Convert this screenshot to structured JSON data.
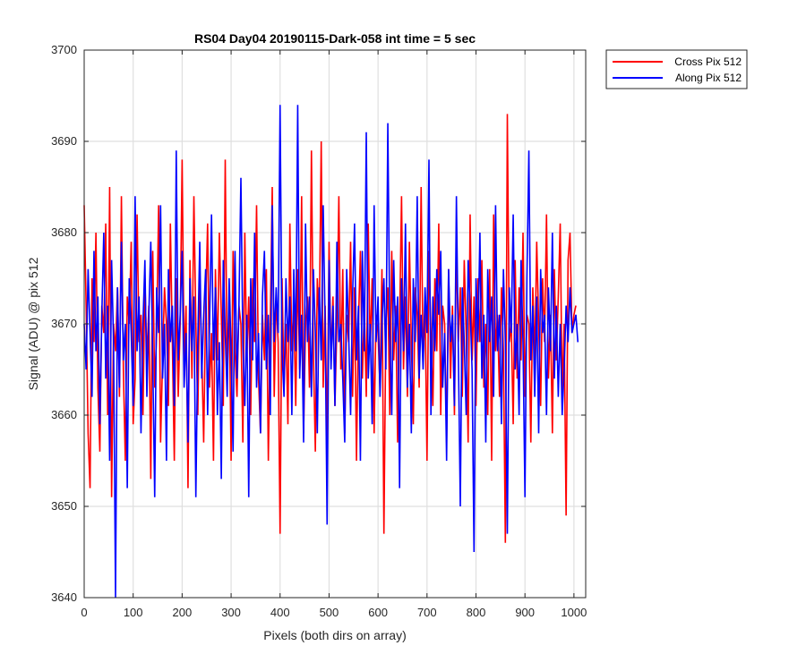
{
  "chart_data": {
    "type": "line",
    "title": "RS04 Day04 20190115-Dark-058 int time = 5 sec",
    "xlabel": "Pixels (both dirs on array)",
    "ylabel": "Signal (ADU) @ pix 512",
    "xlim": [
      0,
      1024
    ],
    "ylim": [
      3640,
      3700
    ],
    "xticks": [
      0,
      100,
      200,
      300,
      400,
      500,
      600,
      700,
      800,
      900,
      1000
    ],
    "yticks": [
      3640,
      3650,
      3660,
      3670,
      3680,
      3690,
      3700
    ],
    "grid": true,
    "legend_position": "outside-top-right",
    "series": [
      {
        "name": "Cross Pix 512",
        "color": "#ff0000",
        "x_start": 0,
        "x_step": 4,
        "values": [
          3683,
          3672,
          3658,
          3652,
          3675,
          3668,
          3680,
          3663,
          3656,
          3672,
          3669,
          3681,
          3660,
          3685,
          3651,
          3670,
          3667,
          3674,
          3662,
          3684,
          3665,
          3655,
          3673,
          3670,
          3679,
          3659,
          3664,
          3682,
          3668,
          3671,
          3660,
          3675,
          3666,
          3672,
          3653,
          3678,
          3663,
          3669,
          3683,
          3657,
          3666,
          3674,
          3670,
          3661,
          3681,
          3668,
          3655,
          3675,
          3662,
          3670,
          3688,
          3666,
          3672,
          3652,
          3677,
          3664,
          3684,
          3670,
          3660,
          3675,
          3667,
          3657,
          3672,
          3681,
          3663,
          3669,
          3655,
          3676,
          3666,
          3680,
          3671,
          3661,
          3688,
          3664,
          3673,
          3655,
          3678,
          3667,
          3662,
          3672,
          3670,
          3657,
          3680,
          3666,
          3673,
          3660,
          3675,
          3668,
          3683,
          3664,
          3658,
          3671,
          3666,
          3676,
          3655,
          3670,
          3685,
          3662,
          3673,
          3668,
          3647,
          3675,
          3663,
          3670,
          3659,
          3681,
          3667,
          3672,
          3661,
          3676,
          3665,
          3684,
          3658,
          3670,
          3673,
          3663,
          3689,
          3667,
          3656,
          3675,
          3670,
          3690,
          3663,
          3672,
          3657,
          3679,
          3666,
          3673,
          3661,
          3670,
          3684,
          3665,
          3676,
          3658,
          3671,
          3668,
          3679,
          3662,
          3674,
          3655,
          3670,
          3678,
          3664,
          3672,
          3662,
          3681,
          3667,
          3675,
          3658,
          3671,
          3669,
          3663,
          3676,
          3647,
          3670,
          3674,
          3660,
          3678,
          3666,
          3672,
          3657,
          3670,
          3684,
          3665,
          3673,
          3662,
          3679,
          3668,
          3659,
          3674,
          3671,
          3663,
          3685,
          3666,
          3672,
          3655,
          3678,
          3669,
          3661,
          3675,
          3667,
          3681,
          3660,
          3672,
          3670,
          3657,
          3676,
          3664,
          3672,
          3660,
          3679,
          3668,
          3674,
          3662,
          3677,
          3669,
          3657,
          3682,
          3666,
          3673,
          3661,
          3675,
          3668,
          3677,
          3663,
          3670,
          3660,
          3676,
          3655,
          3682,
          3667,
          3671,
          3662,
          3674,
          3667,
          3646,
          3693,
          3668,
          3670,
          3659,
          3677,
          3664,
          3674,
          3666,
          3680,
          3662,
          3671,
          3670,
          3657,
          3674,
          3666,
          3679,
          3670,
          3661,
          3675,
          3668,
          3682,
          3664,
          3671,
          3658,
          3676,
          3666,
          3673,
          3681,
          3662,
          3670,
          3649,
          3677,
          3680,
          3669,
          3671,
          3672
        ]
      },
      {
        "name": "Along Pix 512",
        "color": "#0000ff",
        "x_start": 0,
        "x_step": 4,
        "values": [
          3670,
          3665,
          3676,
          3669,
          3662,
          3678,
          3667,
          3673,
          3659,
          3671,
          3680,
          3664,
          3672,
          3655,
          3677,
          3668,
          3640,
          3674,
          3663,
          3679,
          3666,
          3670,
          3652,
          3675,
          3669,
          3661,
          3684,
          3667,
          3673,
          3658,
          3670,
          3677,
          3662,
          3671,
          3679,
          3666,
          3651,
          3674,
          3669,
          3683,
          3664,
          3670,
          3655,
          3676,
          3668,
          3672,
          3661,
          3689,
          3666,
          3671,
          3678,
          3663,
          3669,
          3657,
          3675,
          3667,
          3673,
          3651,
          3668,
          3679,
          3664,
          3671,
          3676,
          3660,
          3670,
          3682,
          3666,
          3674,
          3660,
          3668,
          3653,
          3677,
          3669,
          3662,
          3675,
          3667,
          3656,
          3678,
          3664,
          3672,
          3686,
          3668,
          3661,
          3671,
          3651,
          3675,
          3666,
          3680,
          3663,
          3669,
          3658,
          3673,
          3678,
          3665,
          3671,
          3660,
          3683,
          3668,
          3674,
          3669,
          3694,
          3667,
          3662,
          3675,
          3668,
          3673,
          3660,
          3676,
          3667,
          3694,
          3664,
          3671,
          3657,
          3681,
          3668,
          3673,
          3662,
          3676,
          3669,
          3658,
          3674,
          3666,
          3683,
          3670,
          3648,
          3677,
          3665,
          3672,
          3661,
          3679,
          3668,
          3670,
          3664,
          3657,
          3676,
          3669,
          3660,
          3673,
          3681,
          3666,
          3672,
          3655,
          3678,
          3667,
          3691,
          3664,
          3670,
          3659,
          3683,
          3668,
          3673,
          3662,
          3670,
          3675,
          3665,
          3692,
          3669,
          3660,
          3677,
          3668,
          3673,
          3652,
          3675,
          3667,
          3681,
          3663,
          3670,
          3658,
          3675,
          3668,
          3684,
          3664,
          3671,
          3665,
          3674,
          3669,
          3688,
          3660,
          3673,
          3667,
          3676,
          3671,
          3678,
          3663,
          3669,
          3655,
          3676,
          3668,
          3671,
          3661,
          3684,
          3667,
          3650,
          3674,
          3668,
          3660,
          3677,
          3672,
          3665,
          3645,
          3675,
          3668,
          3680,
          3664,
          3671,
          3657,
          3676,
          3668,
          3673,
          3662,
          3683,
          3667,
          3671,
          3659,
          3676,
          3668,
          3647,
          3674,
          3669,
          3682,
          3665,
          3670,
          3660,
          3677,
          3668,
          3651,
          3675,
          3689,
          3666,
          3672,
          3662,
          3673,
          3658,
          3676,
          3669,
          3671,
          3660,
          3674,
          3667,
          3680,
          3664,
          3672,
          3662,
          3670,
          3660,
          3665,
          3672,
          3668,
          3674,
          3669,
          3670,
          3671,
          3668
        ]
      }
    ]
  }
}
